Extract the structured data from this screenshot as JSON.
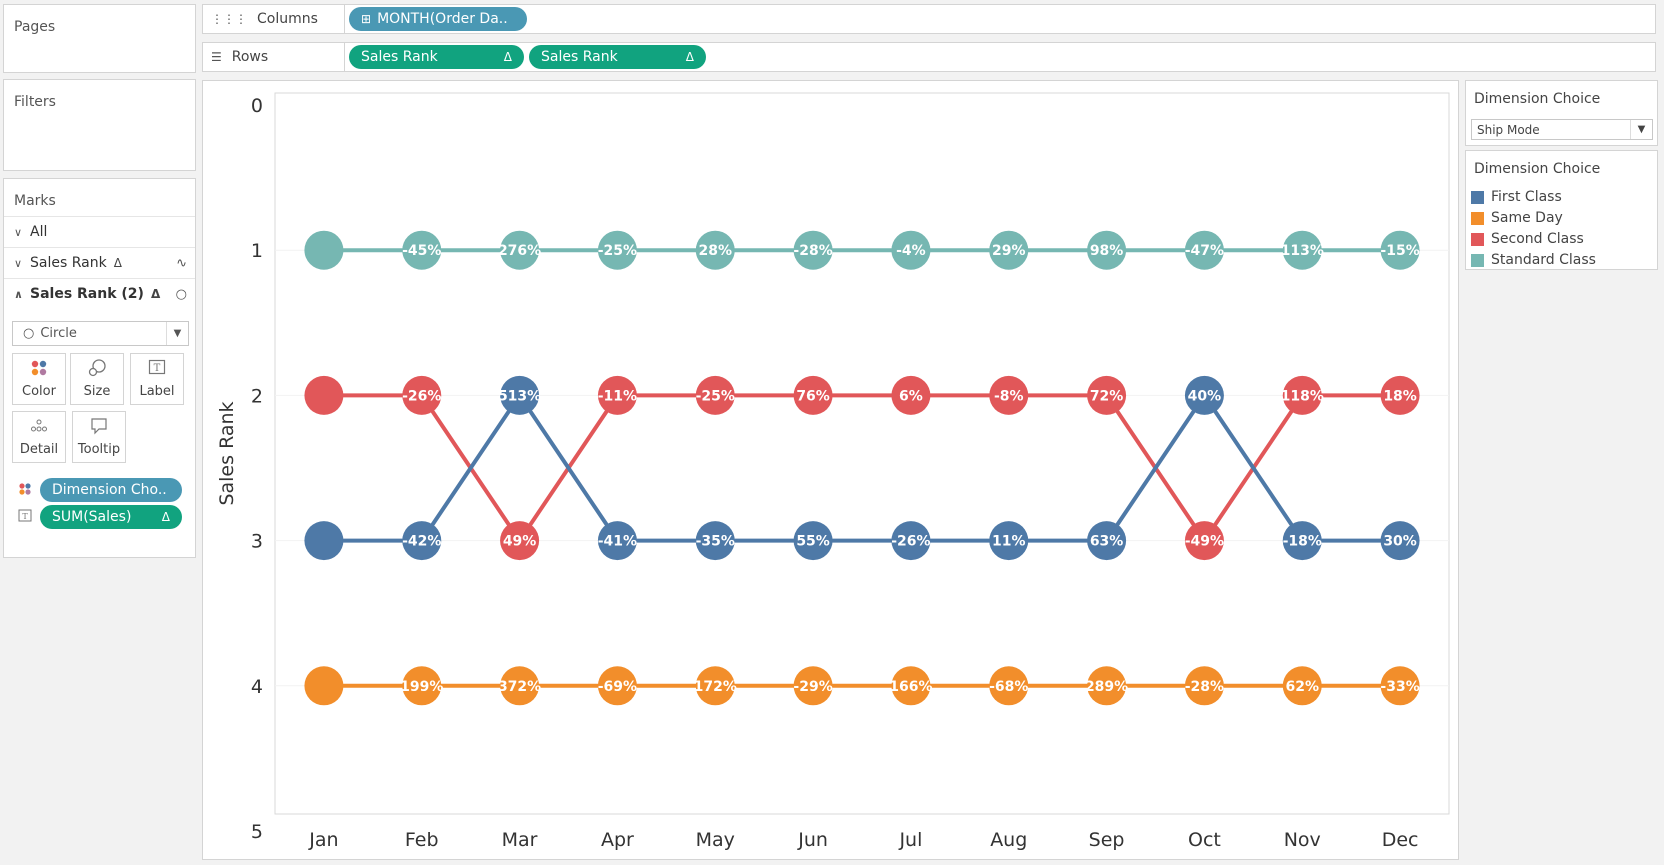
{
  "cards": {
    "pages_title": "Pages",
    "filters_title": "Filters",
    "marks_title": "Marks"
  },
  "marks": {
    "all_label": "All",
    "sales_rank_label": "Sales Rank",
    "sales_rank2_label": "Sales Rank (2)",
    "mark_type": "Circle",
    "buttons": {
      "color": "Color",
      "size": "Size",
      "label": "Label",
      "detail": "Detail",
      "tooltip": "Tooltip"
    },
    "pills": [
      {
        "label": "Dimension Cho..",
        "kind": "dimension",
        "icon": "color-dots-icon"
      },
      {
        "label": "SUM(Sales)",
        "kind": "measure",
        "icon": "label-icon"
      }
    ]
  },
  "shelves": {
    "columns_label": "Columns",
    "columns_pill": "MONTH(Order Da..",
    "rows_label": "Rows",
    "rows_pills": [
      "Sales Rank",
      "Sales Rank"
    ]
  },
  "parameter": {
    "title": "Dimension Choice",
    "selected": "Ship Mode"
  },
  "legend": {
    "title": "Dimension Choice",
    "items": [
      {
        "label": "First Class",
        "color": "#4e79a7"
      },
      {
        "label": "Same Day",
        "color": "#f28e2b"
      },
      {
        "label": "Second Class",
        "color": "#e15759"
      },
      {
        "label": "Standard Class",
        "color": "#76b7b2"
      }
    ]
  },
  "chart_data": {
    "type": "line",
    "ylabel": "Sales Rank",
    "ylim": [
      0,
      5
    ],
    "y_reversed": true,
    "yticks": [
      "0",
      "1",
      "2",
      "3",
      "4",
      "5"
    ],
    "categories": [
      "Jan",
      "Feb",
      "Mar",
      "Apr",
      "May",
      "Jun",
      "Jul",
      "Aug",
      "Sep",
      "Oct",
      "Nov",
      "Dec"
    ],
    "series": [
      {
        "name": "Standard Class",
        "color": "#76b7b2",
        "ranks": [
          1,
          1,
          1,
          1,
          1,
          1,
          1,
          1,
          1,
          1,
          1,
          1
        ],
        "labels": [
          "",
          "-45%",
          "276%",
          "-25%",
          "28%",
          "-28%",
          "-4%",
          "29%",
          "98%",
          "-47%",
          "113%",
          "-15%"
        ]
      },
      {
        "name": "Second Class",
        "color": "#e15759",
        "ranks": [
          2,
          2,
          3,
          2,
          2,
          2,
          2,
          2,
          2,
          3,
          2,
          2
        ],
        "labels": [
          "",
          "-26%",
          "49%",
          "-11%",
          "-25%",
          "76%",
          "6%",
          "-8%",
          "72%",
          "-49%",
          "118%",
          "18%"
        ]
      },
      {
        "name": "First Class",
        "color": "#4e79a7",
        "ranks": [
          3,
          3,
          2,
          3,
          3,
          3,
          3,
          3,
          3,
          2,
          3,
          3
        ],
        "labels": [
          "",
          "-42%",
          "513%",
          "-41%",
          "-35%",
          "55%",
          "-26%",
          "11%",
          "63%",
          "40%",
          "-18%",
          "30%"
        ]
      },
      {
        "name": "Same Day",
        "color": "#f28e2b",
        "ranks": [
          4,
          4,
          4,
          4,
          4,
          4,
          4,
          4,
          4,
          4,
          4,
          4
        ],
        "labels": [
          "",
          "199%",
          "372%",
          "-69%",
          "172%",
          "-29%",
          "166%",
          "-68%",
          "289%",
          "-28%",
          "62%",
          "-33%"
        ]
      }
    ]
  }
}
